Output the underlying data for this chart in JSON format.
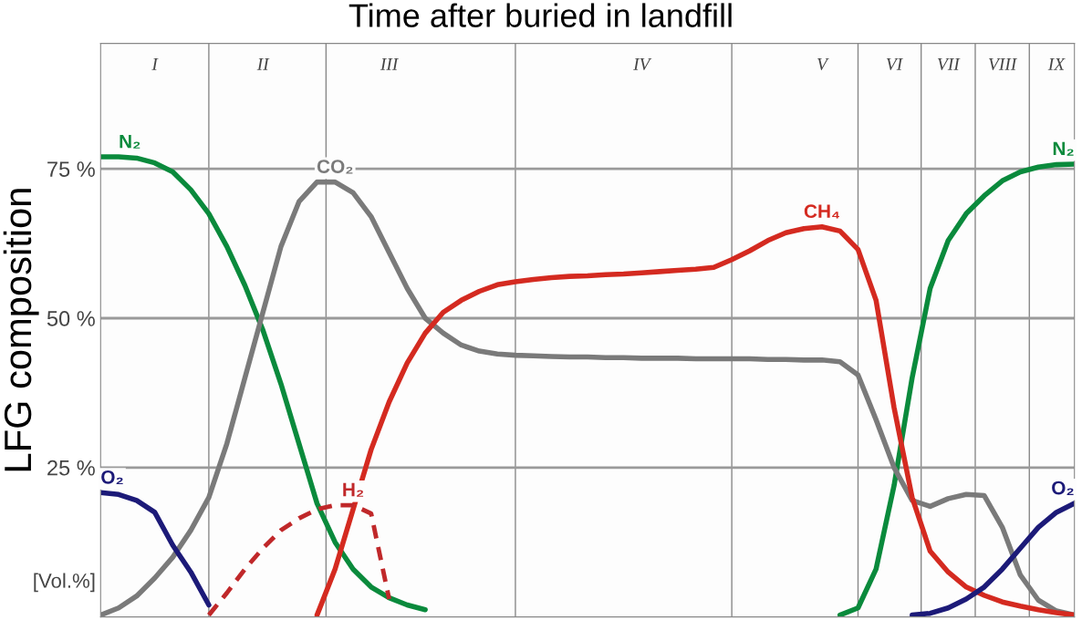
{
  "chart_data": {
    "type": "line",
    "title": "Time after buried in landfill",
    "ylabel": "LFG composition",
    "categories": [
      null,
      null,
      null,
      "I",
      null,
      null,
      null,
      null,
      null,
      "II",
      null,
      null,
      null,
      null,
      null,
      null,
      "III",
      null,
      null,
      null,
      null,
      null,
      null,
      null,
      null,
      null,
      null,
      null,
      null,
      null,
      "IV",
      null,
      null,
      null,
      null,
      null,
      null,
      null,
      null,
      null,
      "V",
      null,
      null,
      null,
      "VI",
      null,
      null,
      "VII",
      null,
      null,
      "VIII",
      null,
      null,
      "IX",
      null
    ],
    "series": [
      {
        "name": "N₂",
        "color": "#0a8a3c",
        "values": [
          77,
          77,
          76.8,
          76,
          74.5,
          71.5,
          67.5,
          62,
          55.5,
          48,
          39,
          29,
          19,
          12.5,
          8,
          5,
          3.2,
          2,
          1.2,
          null,
          null,
          null,
          null,
          null,
          null,
          null,
          null,
          null,
          null,
          null,
          null,
          null,
          null,
          null,
          null,
          null,
          null,
          null,
          null,
          null,
          null,
          null,
          null,
          null,
          null,
          null,
          null,
          null,
          null,
          null,
          null,
          null,
          null,
          null,
          null
        ]
      },
      {
        "name": "N₂",
        "color": "#0a8a3c",
        "values": [
          null,
          null,
          null,
          null,
          null,
          null,
          null,
          null,
          null,
          null,
          null,
          null,
          null,
          null,
          null,
          null,
          null,
          null,
          null,
          null,
          null,
          null,
          null,
          null,
          null,
          null,
          null,
          null,
          null,
          null,
          null,
          null,
          null,
          null,
          null,
          null,
          null,
          null,
          null,
          null,
          null,
          0.3,
          1.5,
          8,
          22,
          40,
          55,
          63,
          67.5,
          70.5,
          73,
          74.5,
          75.3,
          75.7,
          75.8
        ]
      },
      {
        "name": "CO₂",
        "color": "#7a7a7a",
        "values": [
          0.3,
          1.5,
          3.5,
          6.5,
          10,
          14.5,
          20,
          29,
          40,
          51,
          62,
          69.5,
          72.8,
          72.8,
          71,
          67,
          61,
          55,
          50,
          47.5,
          45.5,
          44.5,
          44,
          43.8,
          43.7,
          43.6,
          43.5,
          43.5,
          43.4,
          43.4,
          43.3,
          43.3,
          43.3,
          43.2,
          43.2,
          43.2,
          43.2,
          43.1,
          43.1,
          43,
          43,
          42.7,
          40.5,
          33,
          25,
          19.5,
          18.5,
          19.8,
          20.5,
          20.3,
          15,
          7,
          2.8,
          1,
          0.3
        ]
      },
      {
        "name": "CH₄",
        "color": "#d42a20",
        "values": [
          null,
          null,
          null,
          null,
          null,
          null,
          null,
          null,
          null,
          null,
          null,
          null,
          0.3,
          8,
          18,
          28,
          36,
          42.5,
          47.5,
          51,
          53,
          54.5,
          55.6,
          56.1,
          56.5,
          56.8,
          57,
          57.1,
          57.3,
          57.4,
          57.6,
          57.8,
          58,
          58.2,
          58.5,
          59.8,
          61.3,
          63,
          64.3,
          65,
          65.3,
          64.6,
          61.5,
          53,
          35,
          20,
          11,
          7.5,
          5,
          3.6,
          2.5,
          1.8,
          1.2,
          0.7,
          0.3
        ]
      },
      {
        "name": "H₂",
        "color": "#c0282a",
        "line_style": "dashed",
        "values": [
          null,
          null,
          null,
          null,
          null,
          null,
          0.3,
          4,
          8,
          11.5,
          14.5,
          16.5,
          18,
          18.7,
          18.7,
          17.3,
          3,
          null,
          null,
          null,
          null,
          null,
          null,
          null,
          null,
          null,
          null,
          null,
          null,
          null,
          null,
          null,
          null,
          null,
          null,
          null,
          null,
          null,
          null,
          null,
          null,
          null,
          null,
          null,
          null,
          null,
          null,
          null,
          null,
          null,
          null,
          null,
          null,
          null,
          null
        ]
      },
      {
        "name": "O₂",
        "color": "#1c1a78",
        "values": [
          20.8,
          20.5,
          19.5,
          17.5,
          12,
          7.5,
          2,
          null,
          null,
          null,
          null,
          null,
          null,
          null,
          null,
          null,
          null,
          null,
          null,
          null,
          null,
          null,
          null,
          null,
          null,
          null,
          null,
          null,
          null,
          null,
          null,
          null,
          null,
          null,
          null,
          null,
          null,
          null,
          null,
          null,
          null,
          null,
          null,
          null,
          null,
          null,
          null,
          null,
          null,
          null,
          null,
          null,
          null,
          null,
          null
        ]
      },
      {
        "name": "O₂",
        "color": "#1c1a78",
        "values": [
          null,
          null,
          null,
          null,
          null,
          null,
          null,
          null,
          null,
          null,
          null,
          null,
          null,
          null,
          null,
          null,
          null,
          null,
          null,
          null,
          null,
          null,
          null,
          null,
          null,
          null,
          null,
          null,
          null,
          null,
          null,
          null,
          null,
          null,
          null,
          null,
          null,
          null,
          null,
          null,
          null,
          null,
          null,
          null,
          null,
          0.3,
          0.6,
          1.5,
          3,
          5,
          8,
          11.5,
          15,
          17.5,
          19
        ]
      }
    ],
    "ylim": [
      0,
      96
    ],
    "yticks": [
      {
        "value": 25,
        "label": "25 %"
      },
      {
        "value": 50,
        "label": "50 %"
      },
      {
        "value": 75,
        "label": "75 %"
      }
    ],
    "grid": true,
    "annotations": [
      "[Vol.%]"
    ]
  }
}
